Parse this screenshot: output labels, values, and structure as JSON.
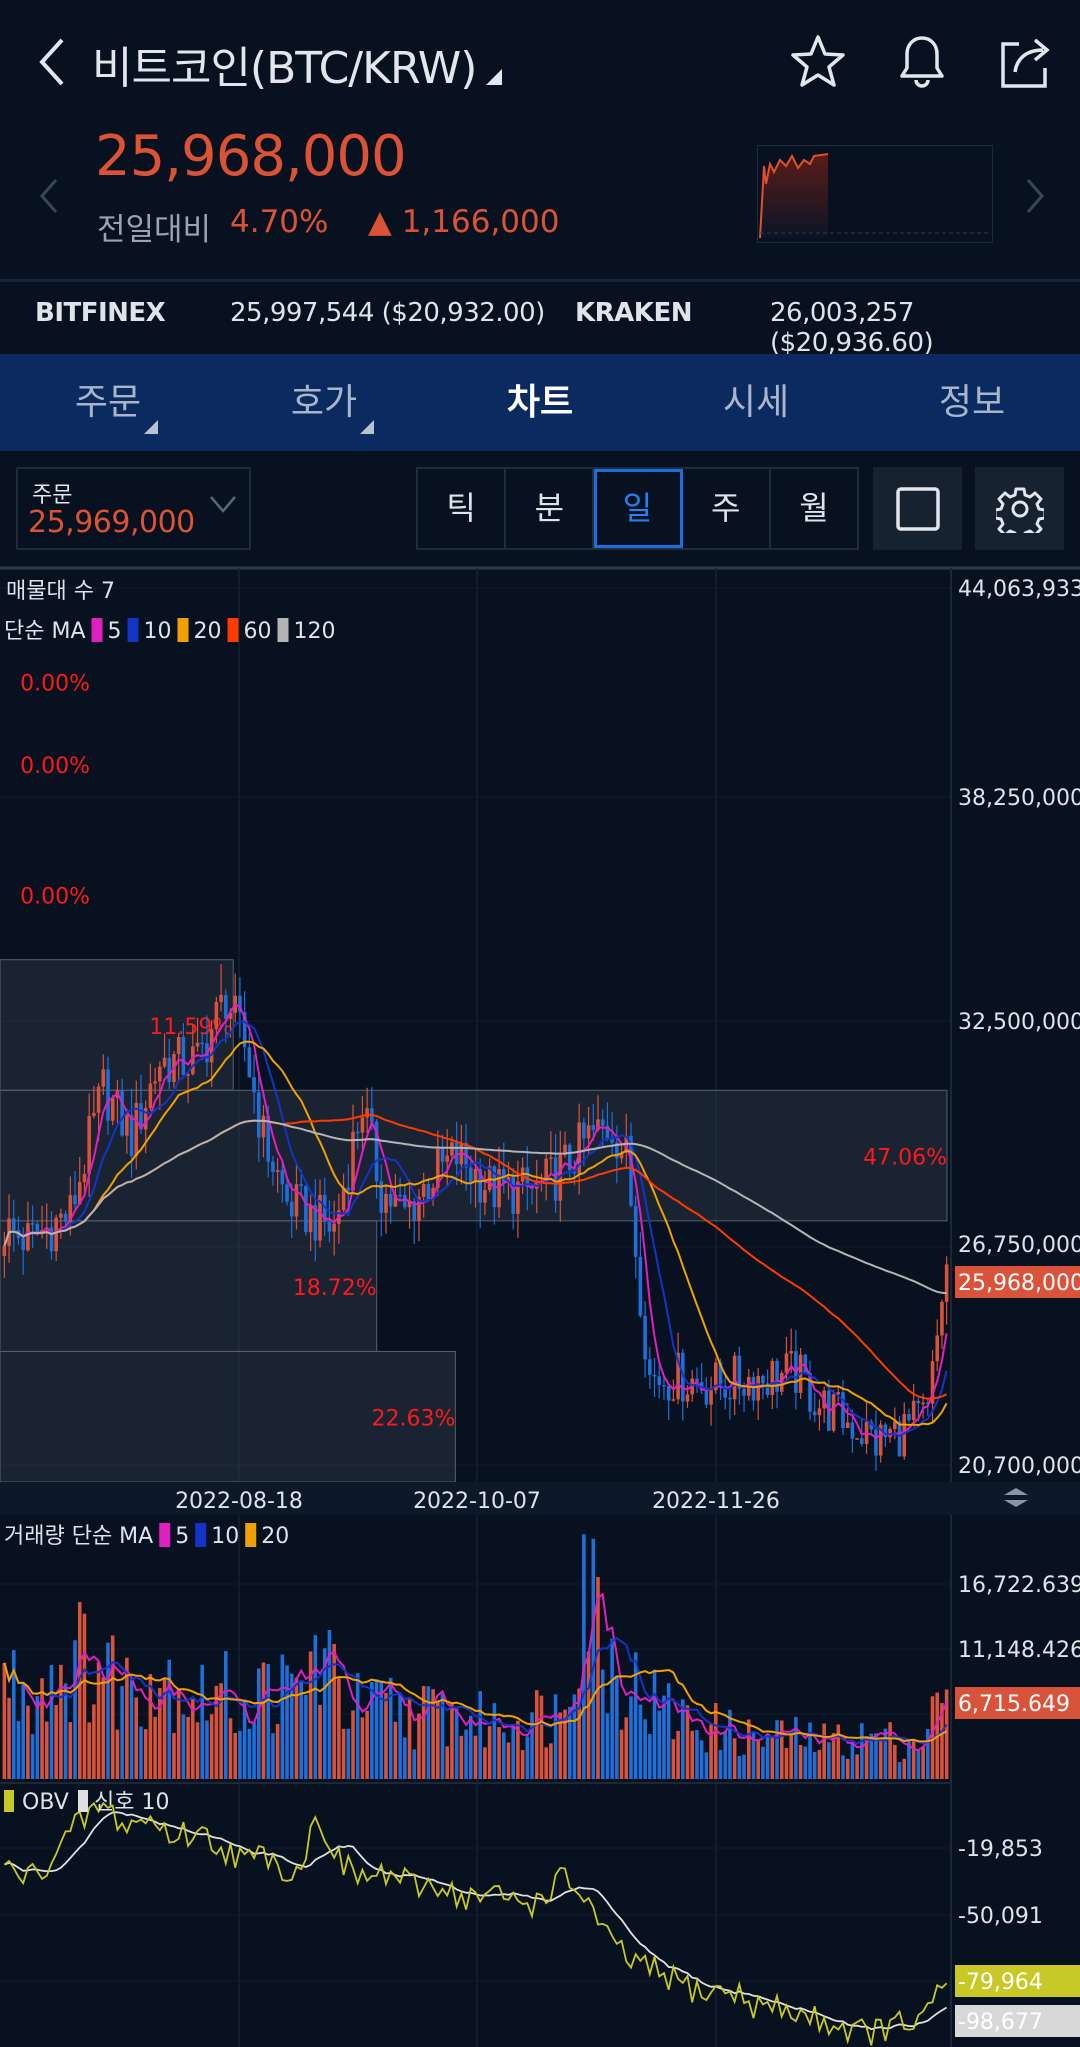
{
  "header": {
    "title": "비트코인(BTC/KRW)",
    "icons": [
      "back-chevron-icon",
      "star-icon",
      "bell-icon",
      "share-icon"
    ]
  },
  "quote": {
    "price": "25,968,000",
    "change_label": "전일대비",
    "change_pct": "4.70%",
    "change_arrow": "▲",
    "change_amount": "1,166,000",
    "up_color": "#dc5234"
  },
  "exchanges": [
    {
      "name": "BITFINEX",
      "value": "25,997,544 ($20,932.00)"
    },
    {
      "name": "KRAKEN",
      "value": "26,003,257 ($20,936.60)"
    }
  ],
  "tabs": [
    {
      "label": "주문",
      "active": false
    },
    {
      "label": "호가",
      "active": false
    },
    {
      "label": "차트",
      "active": true
    },
    {
      "label": "시세",
      "active": false
    },
    {
      "label": "정보",
      "active": false
    }
  ],
  "controls": {
    "order_label": "주문",
    "order_price": "25,969,000",
    "periods": [
      "틱",
      "분",
      "일",
      "주",
      "월"
    ],
    "selected_period": "일"
  },
  "chart_data": [
    {
      "type": "candlestick",
      "legend_zones": "매물대 수 7",
      "legend_ma_label": "단순 MA",
      "ma": [
        {
          "period": "5",
          "color": "#e01fc0"
        },
        {
          "period": "10",
          "color": "#1434c8"
        },
        {
          "period": "20",
          "color": "#f0a000"
        },
        {
          "period": "60",
          "color": "#ff3a00"
        },
        {
          "period": "120",
          "color": "#b4b4b4"
        }
      ],
      "y_ticks": [
        "44,063,933",
        "38,250,000",
        "32,500,000",
        "26,750,000",
        "20,700,000"
      ],
      "ylim": [
        20250000,
        44270000
      ],
      "current_price_label": "25,968,000",
      "x_ticks": [
        "2022-08-18",
        "2022-10-07",
        "2022-11-26"
      ],
      "volume_zones_pct": [
        "0.00%",
        "0.00%",
        "0.00%",
        "11.59%",
        "47.06%",
        "18.72%",
        "22.63%"
      ],
      "zone_values": [
        0,
        0,
        0,
        11.59,
        47.06,
        18.72,
        22.63
      ],
      "close_keypoints": [
        [
          "2022-06-29",
          26.9
        ],
        [
          "2022-07-04",
          26.6
        ],
        [
          "2022-07-13",
          27.3
        ],
        [
          "2022-07-20",
          30.6
        ],
        [
          "2022-07-26",
          29.3
        ],
        [
          "2022-08-01",
          31.3
        ],
        [
          "2022-08-09",
          31.3
        ],
        [
          "2022-08-15",
          33.0
        ],
        [
          "2022-08-19",
          31.7
        ],
        [
          "2022-08-23",
          29.3
        ],
        [
          "2022-08-28",
          27.6
        ],
        [
          "2022-09-07",
          26.9
        ],
        [
          "2022-09-10",
          28.6
        ],
        [
          "2022-09-13",
          30.2
        ],
        [
          "2022-09-17",
          27.9
        ],
        [
          "2022-09-22",
          27.3
        ],
        [
          "2022-09-28",
          28.3
        ],
        [
          "2022-10-03",
          28.8
        ],
        [
          "2022-10-11",
          27.9
        ],
        [
          "2022-10-20",
          27.9
        ],
        [
          "2022-10-25",
          28.4
        ],
        [
          "2022-10-31",
          29.3
        ],
        [
          "2022-11-05",
          29.6
        ],
        [
          "2022-11-08",
          28.8
        ],
        [
          "2022-11-11",
          25.3
        ],
        [
          "2022-11-13",
          23.0
        ],
        [
          "2022-11-19",
          23.0
        ],
        [
          "2022-11-27",
          22.8
        ],
        [
          "2022-12-05",
          23.0
        ],
        [
          "2022-12-14",
          23.1
        ],
        [
          "2022-12-19",
          22.3
        ],
        [
          "2022-12-27",
          21.7
        ],
        [
          "2022-12-31",
          21.3
        ],
        [
          "2023-01-07",
          21.7
        ],
        [
          "2023-01-11",
          22.0
        ],
        [
          "2023-01-13",
          24.0
        ],
        [
          "2023-01-15",
          25.968
        ]
      ],
      "close_unit": "million KRW"
    },
    {
      "type": "bar",
      "legend_label": "거래량 단순 MA",
      "ma": [
        {
          "period": "5",
          "color": "#e01fc0"
        },
        {
          "period": "10",
          "color": "#1434c8"
        },
        {
          "period": "20",
          "color": "#f0a000"
        }
      ],
      "y_ticks": [
        "16,722.639",
        "11,148.426"
      ],
      "ylim": [
        0,
        19500
      ],
      "current_label": "6,715.649",
      "up_color": "#d9533a",
      "down_color": "#1e6fd9",
      "volume_keypoints": [
        7500,
        6500,
        8000,
        9000,
        8500,
        7000,
        8000,
        7500,
        6000,
        6500,
        5500,
        7000,
        6000,
        9500,
        6000,
        5000,
        5500,
        4800,
        5000,
        4500,
        4200,
        4500,
        4800,
        5000,
        17000,
        9000,
        7000,
        5500,
        4500,
        4000,
        3500,
        3000,
        3200,
        3000,
        2800,
        3000,
        3200,
        2800,
        3000,
        6700
      ]
    },
    {
      "type": "line",
      "legend_label": "OBV",
      "signal_label": "신호 10",
      "obv_color": "#c8c826",
      "signal_color": "#e0e0e0",
      "y_ticks": [
        "-19,853",
        "-50,091"
      ],
      "ylim": [
        -107000,
        12000
      ],
      "obv_label": "-79,964",
      "signal_value_label": "-98,677",
      "obv_keypoints": [
        -25000,
        -30000,
        -20000,
        -5000,
        5000,
        -5000,
        -2000,
        -10000,
        -8000,
        -15000,
        -22000,
        -18000,
        -30000,
        0,
        -25000,
        -30000,
        -28000,
        -35000,
        -32000,
        -40000,
        -38000,
        -40000,
        -42000,
        -30000,
        -38000,
        -60000,
        -70000,
        -75000,
        -80000,
        -85000,
        -83000,
        -90000,
        -92000,
        -95000,
        -98000,
        -102000,
        -103000,
        -100000,
        -98000,
        -79964
      ]
    }
  ]
}
